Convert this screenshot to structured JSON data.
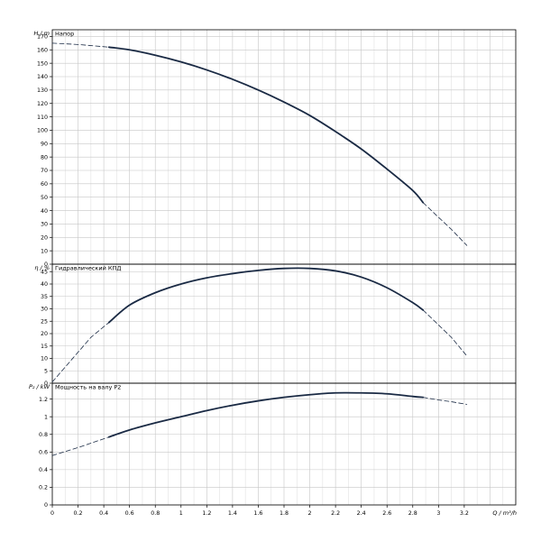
{
  "chart_data": [
    {
      "type": "line",
      "title": "Напор",
      "ylabel": "H / m",
      "xlabel": "",
      "xlim": [
        0,
        3.6
      ],
      "ylim": [
        0,
        175
      ],
      "y_ticks": [
        0,
        10,
        20,
        30,
        40,
        50,
        60,
        70,
        80,
        90,
        100,
        110,
        120,
        130,
        140,
        150,
        160,
        170
      ],
      "grid": true,
      "series": [
        {
          "style": "solid",
          "x": [
            0.44,
            0.6,
            0.8,
            1.0,
            1.2,
            1.4,
            1.6,
            1.8,
            2.0,
            2.2,
            2.4,
            2.6,
            2.8,
            2.88
          ],
          "y": [
            162,
            160,
            156,
            151,
            145,
            138,
            130,
            121,
            111,
            99,
            86,
            71,
            55,
            46
          ]
        },
        {
          "style": "dashed",
          "x": [
            0.0,
            0.2,
            0.44
          ],
          "y": [
            165,
            164,
            162
          ]
        },
        {
          "style": "dashed",
          "x": [
            2.88,
            3.0,
            3.1,
            3.22
          ],
          "y": [
            46,
            35,
            26,
            14
          ]
        }
      ]
    },
    {
      "type": "line",
      "title": "Гидравлический КПД",
      "ylabel": "η / %",
      "xlabel": "",
      "xlim": [
        0,
        3.6
      ],
      "ylim": [
        0,
        48
      ],
      "y_ticks": [
        0,
        5,
        10,
        15,
        20,
        25,
        30,
        35,
        40,
        45
      ],
      "grid": true,
      "series": [
        {
          "style": "solid",
          "x": [
            0.44,
            0.6,
            0.8,
            1.0,
            1.2,
            1.4,
            1.6,
            1.8,
            2.0,
            2.2,
            2.4,
            2.6,
            2.8,
            2.88
          ],
          "y": [
            24.5,
            31.5,
            36.5,
            40.0,
            42.5,
            44.2,
            45.5,
            46.3,
            46.3,
            45.3,
            42.8,
            38.5,
            32.5,
            29.5
          ]
        },
        {
          "style": "dashed",
          "x": [
            0.0,
            0.1,
            0.2,
            0.3,
            0.44
          ],
          "y": [
            0.5,
            6.5,
            12.5,
            18.5,
            24.5
          ]
        },
        {
          "style": "dashed",
          "x": [
            2.88,
            3.0,
            3.1,
            3.22
          ],
          "y": [
            29.5,
            23.5,
            18.5,
            11.0
          ]
        }
      ]
    },
    {
      "type": "line",
      "title": "Мощность на валу P2",
      "ylabel": "P₂ / kW",
      "xlabel": "Q / m³/h",
      "xlim": [
        0,
        3.6
      ],
      "ylim": [
        0,
        1.38
      ],
      "y_ticks": [
        0,
        0.2,
        0.4,
        0.6,
        0.8,
        1.0,
        1.2
      ],
      "y_tick_labels": [
        "0",
        "0.2",
        "0.4",
        "0.6",
        "0.8",
        "1",
        "1.2"
      ],
      "x_ticks": [
        0,
        0.2,
        0.4,
        0.6,
        0.8,
        1.0,
        1.2,
        1.4,
        1.6,
        1.8,
        2.0,
        2.2,
        2.4,
        2.6,
        2.8,
        3.0,
        3.2
      ],
      "x_tick_labels": [
        "0",
        "0.2",
        "0.4",
        "0.6",
        "0.8",
        "1",
        "1.2",
        "1.4",
        "1.6",
        "1.8",
        "2",
        "2.2",
        "2.4",
        "2.6",
        "2.8",
        "3",
        "3.2"
      ],
      "grid": true,
      "series": [
        {
          "style": "solid",
          "x": [
            0.44,
            0.6,
            0.8,
            1.0,
            1.2,
            1.4,
            1.6,
            1.8,
            2.0,
            2.2,
            2.4,
            2.6,
            2.8,
            2.88
          ],
          "y": [
            0.77,
            0.85,
            0.93,
            1.0,
            1.07,
            1.13,
            1.18,
            1.22,
            1.25,
            1.27,
            1.27,
            1.26,
            1.23,
            1.22
          ]
        },
        {
          "style": "dashed",
          "x": [
            0.0,
            0.2,
            0.44
          ],
          "y": [
            0.56,
            0.65,
            0.77
          ]
        },
        {
          "style": "dashed",
          "x": [
            2.88,
            3.0,
            3.1,
            3.22
          ],
          "y": [
            1.22,
            1.19,
            1.17,
            1.14
          ]
        }
      ]
    }
  ]
}
